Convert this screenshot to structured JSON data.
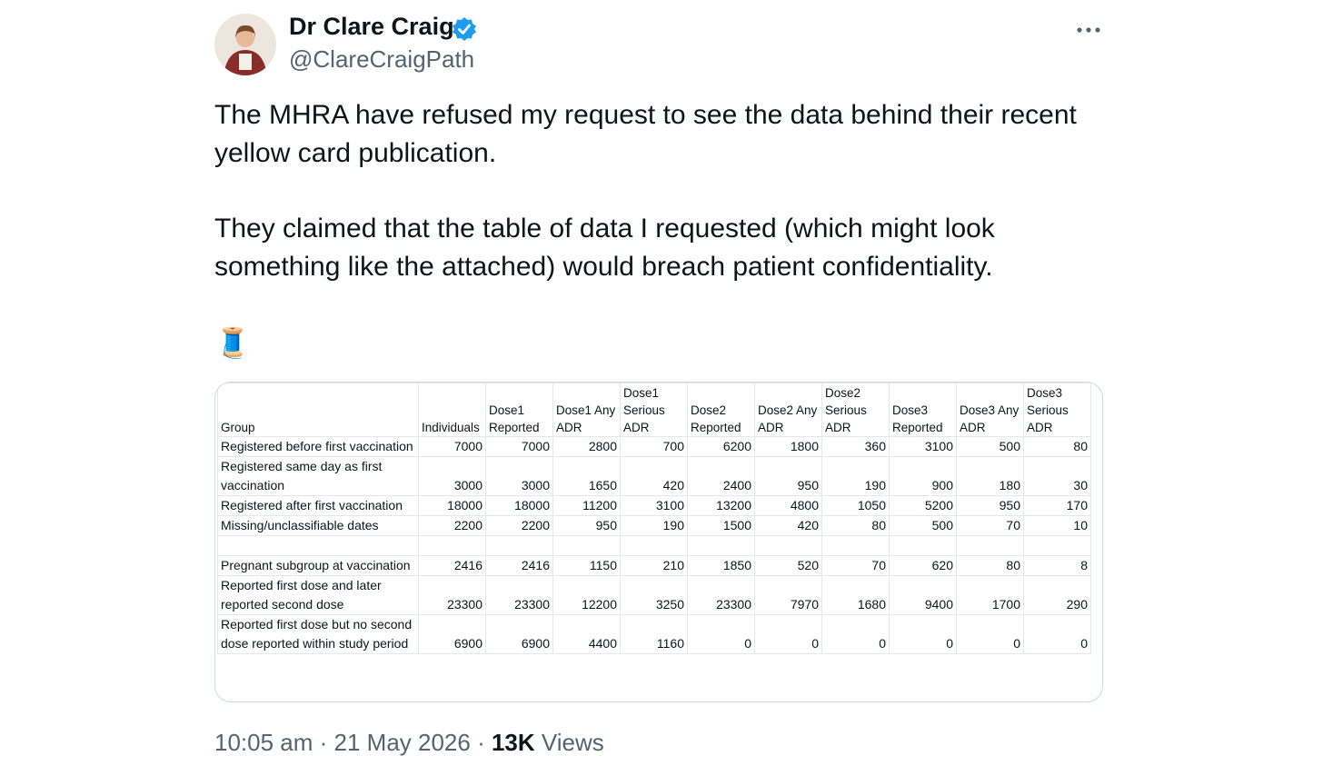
{
  "author": {
    "name": "Dr Clare Craig",
    "handle": "@ClareCraigPath"
  },
  "paragraphs": [
    "The MHRA have refused my request to see the data behind their recent yellow card publication.",
    "They claimed that the table of data I requested (which might look something like the attached) would breach patient confidentiality.",
    "🧵"
  ],
  "table": {
    "header": [
      "Group",
      "Individuals",
      "Dose1 Reported",
      "Dose1 Any ADR",
      "Dose1 Serious ADR",
      "Dose2 Reported",
      "Dose2 Any ADR",
      "Dose2 Serious ADR",
      "Dose3 Reported",
      "Dose3 Any ADR",
      "Dose3 Serious ADR"
    ],
    "rows": [
      [
        "Registered before first vaccination",
        7000,
        7000,
        2800,
        700,
        6200,
        1800,
        360,
        3100,
        500,
        80
      ],
      [
        "Registered same day as first vaccination",
        3000,
        3000,
        1650,
        420,
        2400,
        950,
        190,
        900,
        180,
        30
      ],
      [
        "Registered after first vaccination",
        18000,
        18000,
        11200,
        3100,
        13200,
        4800,
        1050,
        5200,
        950,
        170
      ],
      [
        "Missing/unclassifiable dates",
        2200,
        2200,
        950,
        190,
        1500,
        420,
        80,
        500,
        70,
        10
      ],
      [
        "Pregnant subgroup at vaccination",
        2416,
        2416,
        1150,
        210,
        1850,
        520,
        70,
        620,
        80,
        8
      ],
      [
        "Reported first dose and later reported second dose",
        23300,
        23300,
        12200,
        3250,
        23300,
        7970,
        1680,
        9400,
        1700,
        290
      ],
      [
        "Reported first dose but no second dose reported within study period",
        6900,
        6900,
        4400,
        1160,
        0,
        0,
        0,
        0,
        0,
        0
      ]
    ]
  },
  "meta": {
    "time": "10:05 am",
    "date": "21 May 2026",
    "views": "13K",
    "views_label": "Views"
  }
}
